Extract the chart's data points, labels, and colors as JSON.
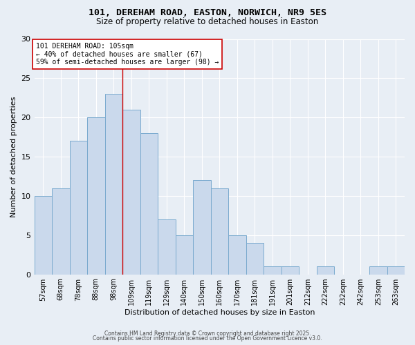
{
  "title_line1": "101, DEREHAM ROAD, EASTON, NORWICH, NR9 5ES",
  "title_line2": "Size of property relative to detached houses in Easton",
  "xlabel": "Distribution of detached houses by size in Easton",
  "ylabel": "Number of detached properties",
  "categories": [
    "57sqm",
    "68sqm",
    "78sqm",
    "88sqm",
    "98sqm",
    "109sqm",
    "119sqm",
    "129sqm",
    "140sqm",
    "150sqm",
    "160sqm",
    "170sqm",
    "181sqm",
    "191sqm",
    "201sqm",
    "212sqm",
    "222sqm",
    "232sqm",
    "242sqm",
    "253sqm",
    "263sqm"
  ],
  "values": [
    10,
    11,
    17,
    20,
    23,
    21,
    18,
    7,
    5,
    12,
    11,
    5,
    4,
    1,
    1,
    0,
    1,
    0,
    0,
    1,
    1
  ],
  "bar_color": "#cad9ec",
  "bar_edgecolor": "#7aaace",
  "vline_x": 4.5,
  "vline_color": "#cc0000",
  "annotation_text": "101 DEREHAM ROAD: 105sqm\n← 40% of detached houses are smaller (67)\n59% of semi-detached houses are larger (98) →",
  "annotation_box_color": "#ffffff",
  "annotation_box_edgecolor": "#cc0000",
  "ylim": [
    0,
    30
  ],
  "yticks": [
    0,
    5,
    10,
    15,
    20,
    25,
    30
  ],
  "background_color": "#e8eef5",
  "grid_color": "#ffffff",
  "footer_line1": "Contains HM Land Registry data © Crown copyright and database right 2025.",
  "footer_line2": "Contains public sector information licensed under the Open Government Licence v3.0."
}
